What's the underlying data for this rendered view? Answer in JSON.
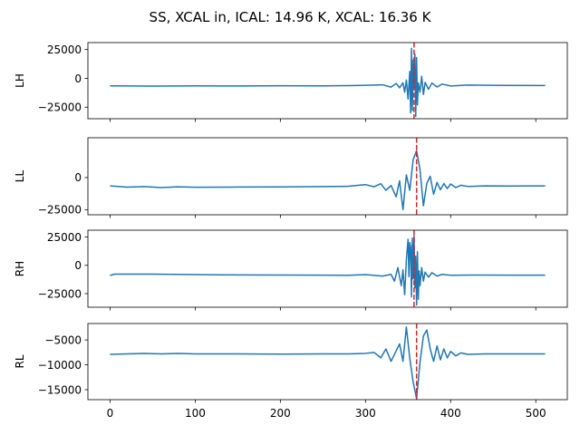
{
  "figure": {
    "suptitle": "SS, XCAL in, ICAL: 14.96 K, XCAL: 16.36 K",
    "line_color": "#1f77b4",
    "marker_color": "#d62728"
  },
  "chart_data": [
    {
      "type": "line",
      "ylabel": "LH",
      "xlim": [
        -26,
        537
      ],
      "ylim": [
        -35000,
        31000
      ],
      "yticks": [
        -25000,
        0,
        25000
      ],
      "yticklabels": [
        "−25000",
        "0",
        "25000"
      ],
      "xticks": [
        0,
        100,
        200,
        300,
        400,
        500
      ],
      "show_xticklabels": false,
      "vline_x": 357,
      "series": [
        {
          "x": [
            0,
            50,
            100,
            150,
            200,
            250,
            280,
            300,
            320,
            330,
            336,
            340,
            344,
            346,
            348,
            350,
            352,
            353,
            354,
            355,
            356,
            357,
            358,
            359,
            360,
            361,
            362,
            364,
            366,
            368,
            370,
            374,
            378,
            384,
            390,
            400,
            420,
            460,
            511
          ],
          "y": [
            -6500,
            -6700,
            -6500,
            -6600,
            -6400,
            -6500,
            -6300,
            -6000,
            -5600,
            -7600,
            -4400,
            -8200,
            -3800,
            -12000,
            -1500,
            -18000,
            6000,
            -30000,
            26000,
            -28000,
            16000,
            -8000,
            21000,
            -33000,
            18000,
            -23000,
            -4000,
            -12000,
            1800,
            -14000,
            -3500,
            -9500,
            -4000,
            -7500,
            -5000,
            -6600,
            -5800,
            -6100,
            -6200
          ]
        }
      ]
    },
    {
      "type": "line",
      "ylabel": "LL",
      "xlim": [
        -26,
        537
      ],
      "ylim": [
        -29000,
        31000
      ],
      "yticks": [
        -25000,
        0
      ],
      "yticklabels": [
        "−25000",
        "0"
      ],
      "xticks": [
        0,
        100,
        200,
        300,
        400,
        500
      ],
      "show_xticklabels": false,
      "vline_x": 360,
      "series": [
        {
          "x": [
            0,
            20,
            40,
            60,
            80,
            100,
            150,
            200,
            250,
            280,
            300,
            310,
            318,
            324,
            330,
            336,
            340,
            344,
            348,
            352,
            356,
            360,
            364,
            368,
            372,
            376,
            380,
            384,
            388,
            392,
            396,
            400,
            406,
            412,
            420,
            440,
            470,
            511
          ],
          "y": [
            -6500,
            -7500,
            -7000,
            -7800,
            -7200,
            -7600,
            -7400,
            -7300,
            -7000,
            -6800,
            -5500,
            -7200,
            -4800,
            -10000,
            -6200,
            -15000,
            -2500,
            -25000,
            2000,
            -10000,
            14000,
            21000,
            6000,
            -22000,
            -4500,
            1000,
            -13000,
            -3800,
            -9500,
            -4700,
            -8600,
            -5000,
            -7800,
            -6000,
            -6900,
            -6500,
            -6600,
            -6500
          ]
        }
      ]
    },
    {
      "type": "line",
      "ylabel": "RH",
      "xlim": [
        -26,
        537
      ],
      "ylim": [
        -37000,
        31000
      ],
      "yticks": [
        -25000,
        0,
        25000
      ],
      "yticklabels": [
        "−25000",
        "0",
        "25000"
      ],
      "xticks": [
        0,
        100,
        200,
        300,
        400,
        500
      ],
      "show_xticklabels": false,
      "vline_x": 357,
      "series": [
        {
          "x": [
            0,
            5,
            50,
            100,
            150,
            200,
            250,
            280,
            300,
            320,
            330,
            334,
            338,
            342,
            344,
            346,
            348,
            350,
            351,
            352,
            353,
            354,
            355,
            356,
            357,
            358,
            359,
            360,
            361,
            362,
            363,
            364,
            366,
            368,
            370,
            374,
            378,
            384,
            390,
            400,
            430,
            470,
            511
          ],
          "y": [
            -9000,
            -7800,
            -7800,
            -8200,
            -8500,
            -8600,
            -8700,
            -8800,
            -8200,
            -9500,
            -8000,
            -14000,
            -2000,
            -18000,
            -4000,
            -26000,
            5000,
            23000,
            -10000,
            20000,
            16000,
            -28000,
            24000,
            -12000,
            26000,
            -20000,
            8000,
            -35000,
            12000,
            -30000,
            -5000,
            -18000,
            -2000,
            -14000,
            -6000,
            -10500,
            -6500,
            -9500,
            -8000,
            -8800,
            -8600,
            -8700,
            -8700
          ]
        }
      ]
    },
    {
      "type": "line",
      "ylabel": "RL",
      "xlim": [
        -26,
        537
      ],
      "ylim": [
        -17000,
        -1700
      ],
      "yticks": [
        -15000,
        -10000,
        -5000
      ],
      "yticklabels": [
        "−15000",
        "−10000",
        "−5000"
      ],
      "xticks": [
        0,
        100,
        200,
        300,
        400,
        500
      ],
      "xticklabels": [
        "0",
        "100",
        "200",
        "300",
        "400",
        "500"
      ],
      "show_xticklabels": true,
      "vline_x": 360,
      "series": [
        {
          "x": [
            0,
            20,
            40,
            60,
            80,
            100,
            150,
            200,
            250,
            280,
            300,
            310,
            318,
            324,
            330,
            336,
            340,
            344,
            348,
            352,
            356,
            360,
            364,
            368,
            372,
            376,
            380,
            384,
            388,
            392,
            396,
            400,
            406,
            412,
            420,
            440,
            470,
            511
          ],
          "y": [
            -7900,
            -7800,
            -7700,
            -7800,
            -7700,
            -7800,
            -7800,
            -7850,
            -7800,
            -7800,
            -7700,
            -7500,
            -8600,
            -6800,
            -9300,
            -7200,
            -5800,
            -9300,
            -2400,
            -8700,
            -13500,
            -16800,
            -9500,
            -4200,
            -3000,
            -6800,
            -9300,
            -6200,
            -9000,
            -6800,
            -8600,
            -7300,
            -8200,
            -7600,
            -7900,
            -7800,
            -7800,
            -7800
          ]
        }
      ]
    }
  ]
}
